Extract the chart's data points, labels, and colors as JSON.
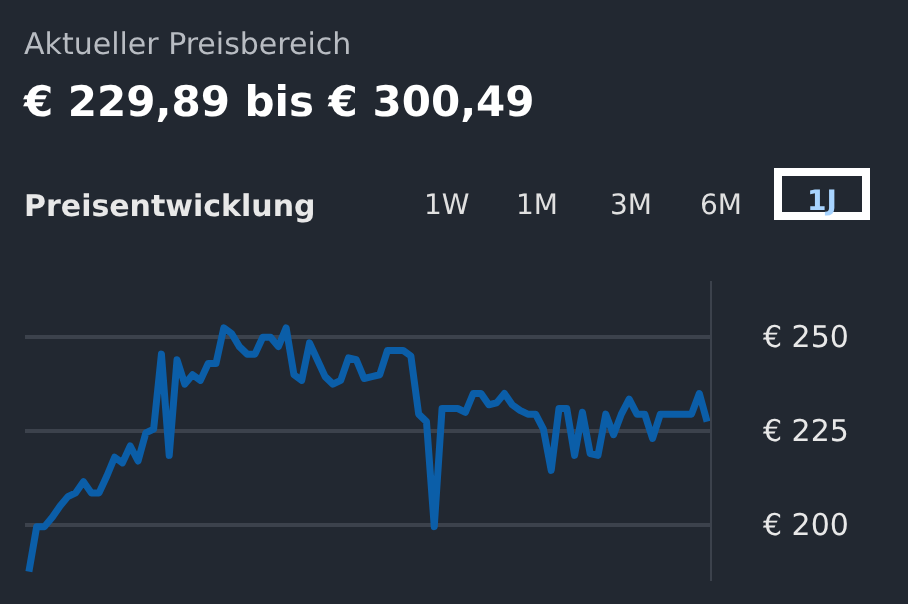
{
  "chart_data": {
    "type": "line",
    "title": "Aktueller Preisbereich",
    "subtitle": "€ 229,89 bis € 300,49",
    "annotations": [
      "Preisentwicklung",
      "1W",
      "1M",
      "3M",
      "6M",
      "1J"
    ],
    "categories": [
      null,
      null,
      null,
      null,
      null,
      null,
      null,
      null,
      null,
      null,
      null,
      null,
      null,
      null,
      null,
      null,
      null,
      null,
      null,
      null,
      null,
      null,
      null,
      null,
      null,
      null,
      null,
      null,
      null,
      null,
      null,
      null,
      null,
      null,
      null,
      null,
      null,
      null,
      null,
      null,
      null,
      null,
      null,
      null,
      null,
      null,
      null,
      null,
      null,
      null,
      null,
      null,
      null,
      null,
      null,
      null,
      null,
      null,
      null,
      null,
      null,
      null,
      null,
      null,
      null,
      null,
      null,
      null,
      null,
      null,
      null,
      null,
      null,
      null,
      null,
      null,
      null,
      null,
      null,
      null,
      null,
      null,
      null,
      null,
      null,
      null,
      null,
      null
    ],
    "series": [
      {
        "color": "#0b5ea8",
        "values": [
          187.5,
          199.5,
          199.5,
          202,
          205,
          207.5,
          208.5,
          211.5,
          208.5,
          208.5,
          213,
          218,
          216.5,
          221,
          217,
          224.5,
          225.5,
          245.5,
          218.5,
          244,
          237.5,
          240,
          238.5,
          243,
          243,
          252.5,
          251,
          247.5,
          245.5,
          245.5,
          250,
          250,
          247.5,
          252.5,
          240,
          238.5,
          248.5,
          244,
          239.5,
          237.5,
          238.5,
          244.5,
          244,
          239,
          239.5,
          240,
          246.5,
          246.5,
          246.5,
          245,
          229.5,
          227.5,
          199.5,
          231,
          231,
          231,
          230,
          235,
          235,
          232,
          232.5,
          235,
          232,
          230.5,
          229.5,
          229.5,
          225.5,
          214.5,
          231,
          231,
          218.5,
          230,
          219,
          218.5,
          229.5,
          224,
          229.5,
          233.5,
          229.5,
          229.5,
          223,
          229.5,
          229.5,
          229.5,
          229.5,
          229.5,
          235,
          227.5
        ]
      }
    ],
    "ylim": [
      185,
      265
    ],
    "yticks": [
      {
        "value": 200,
        "label": "€ 200"
      },
      {
        "value": 225,
        "label": "€ 225"
      },
      {
        "value": 250,
        "label": "€ 250"
      }
    ],
    "grid": "y",
    "tick_labels": "y"
  }
}
